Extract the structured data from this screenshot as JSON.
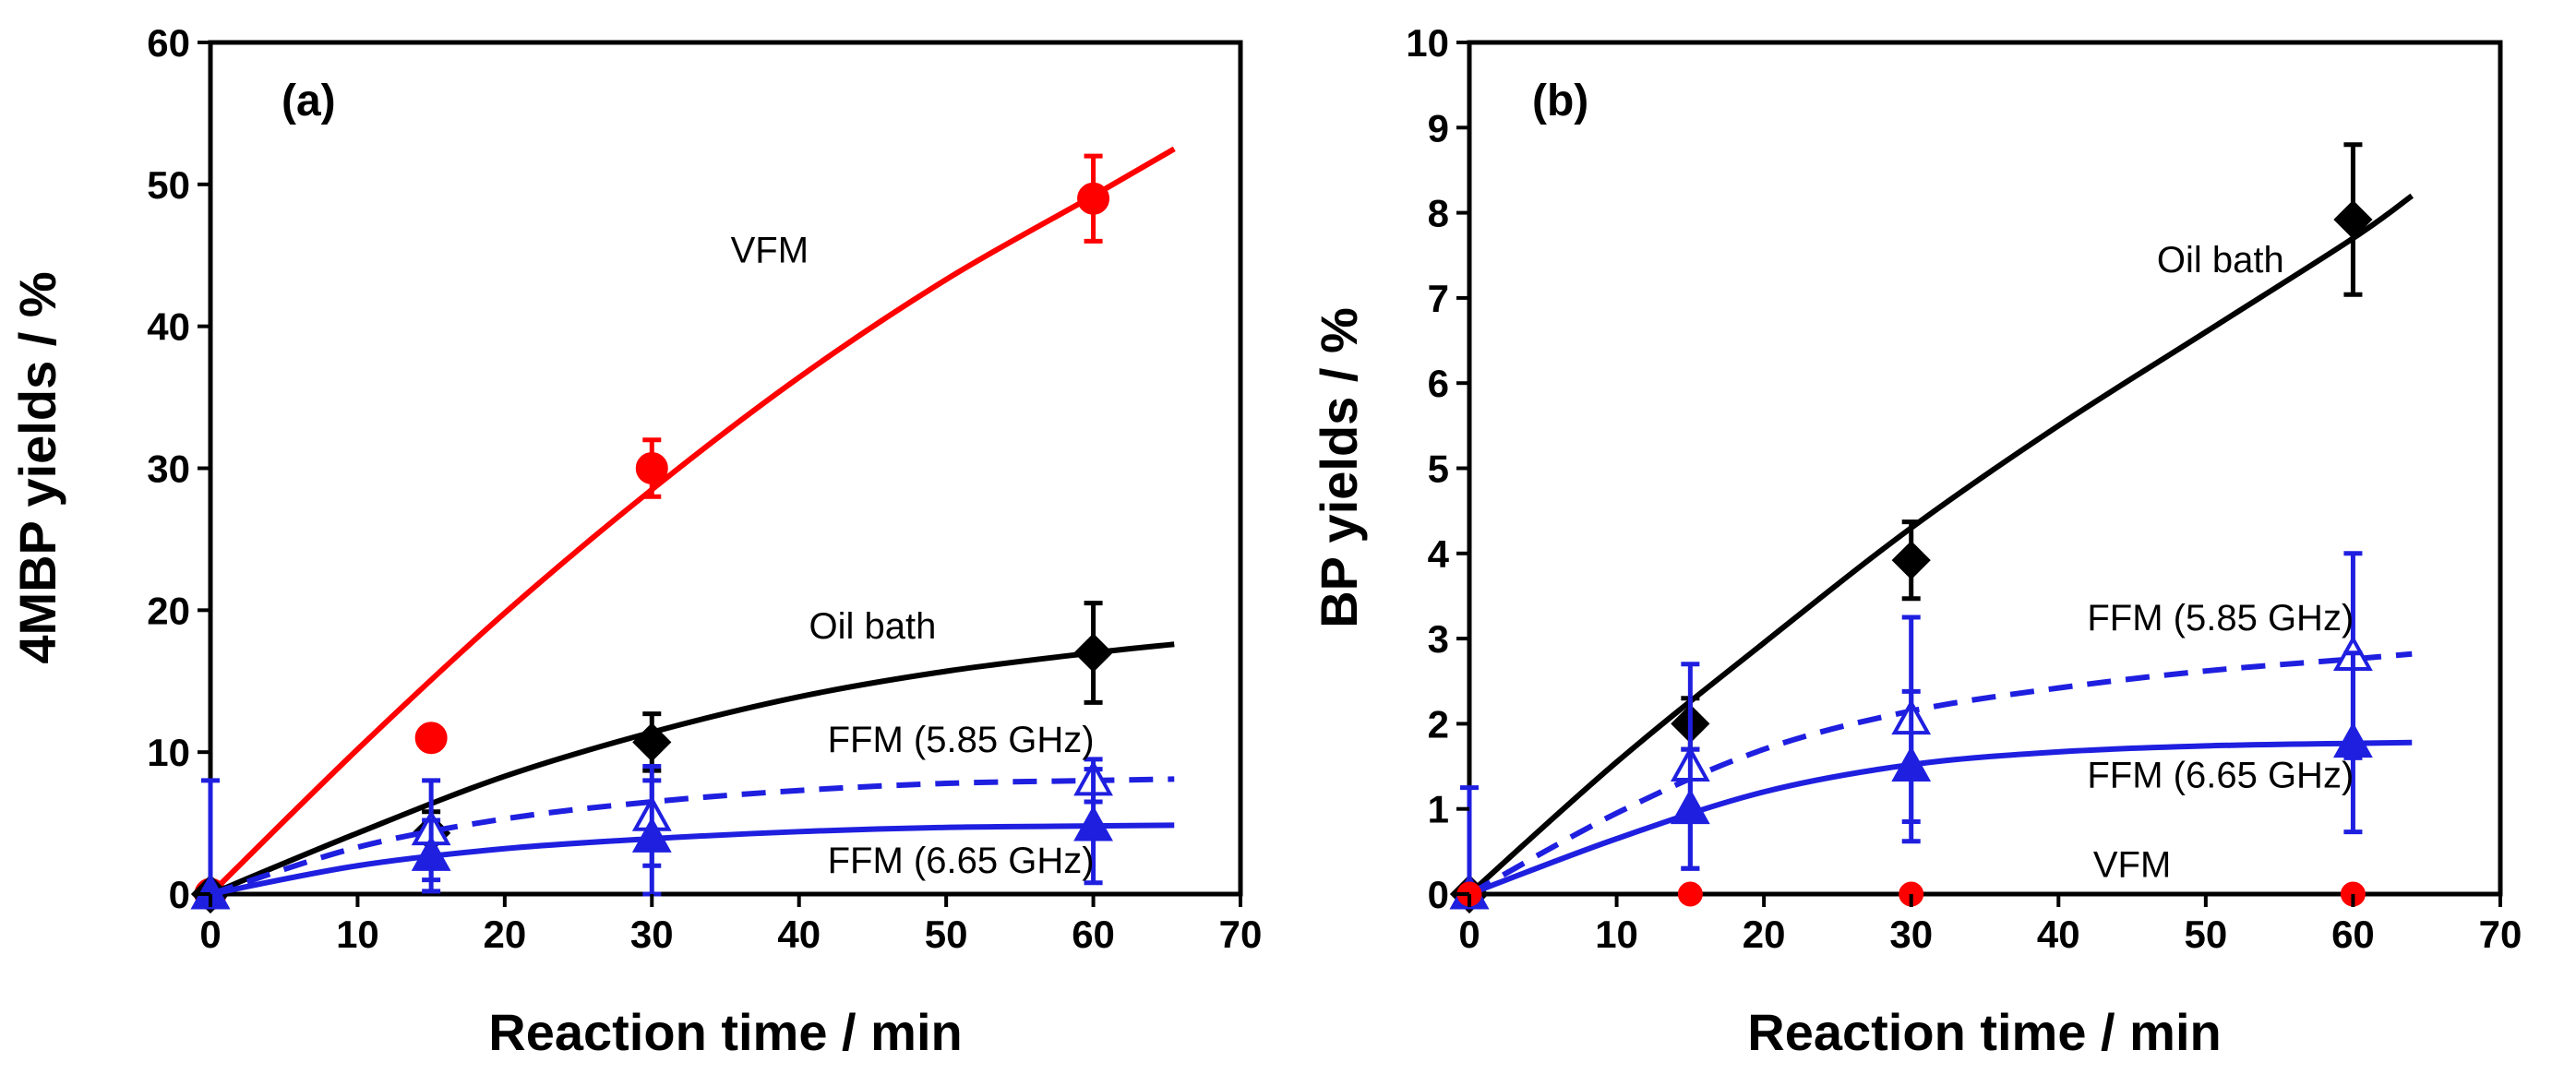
{
  "chart_data": [
    {
      "type": "line",
      "panel_label": "(a)",
      "xlabel": "Reaction time / min",
      "ylabel": "4MBP yields / %",
      "xlim": [
        0,
        70
      ],
      "ylim": [
        0,
        60
      ],
      "xticks": [
        "0",
        "10",
        "20",
        "30",
        "40",
        "50",
        "60",
        "70"
      ],
      "yticks": [
        "0",
        "10",
        "20",
        "30",
        "40",
        "50",
        "60"
      ],
      "grid": false,
      "legend": "none",
      "annotations": [
        {
          "text": "VFM",
          "series": "VFM",
          "x": 38,
          "y": 44.5
        },
        {
          "text": "Oil bath",
          "series": "Oil bath",
          "x": 45,
          "y": 18
        },
        {
          "text": "FFM (5.85 GHz)",
          "series": "FFM (5.85 GHz)",
          "x": 51,
          "y": 10
        },
        {
          "text": "FFM (6.65 GHz)",
          "series": "FFM (6.65 GHz)",
          "x": 51,
          "y": 1.5
        }
      ],
      "series": [
        {
          "name": "VFM",
          "color": "#ff0000",
          "marker": "circle",
          "filled": true,
          "dashed": false,
          "x": [
            0,
            15,
            30,
            60
          ],
          "y": [
            0,
            11,
            30,
            49
          ],
          "err": [
            0,
            0,
            2,
            3
          ],
          "fit_x": [
            0,
            10,
            20,
            30,
            40,
            50,
            60,
            65.5
          ],
          "fit_y": [
            0,
            10.2,
            19.8,
            28.5,
            36.4,
            43.3,
            49.2,
            52.5
          ]
        },
        {
          "name": "Oil bath",
          "color": "#000000",
          "marker": "diamond",
          "filled": true,
          "dashed": false,
          "x": [
            0,
            15,
            30,
            60
          ],
          "y": [
            0,
            4.3,
            10.7,
            17
          ],
          "err": [
            0,
            1.5,
            2.0,
            3.5
          ],
          "fit_x": [
            0,
            10,
            20,
            30,
            40,
            50,
            60,
            65.5
          ],
          "fit_y": [
            0,
            4.3,
            8.3,
            11.4,
            13.9,
            15.7,
            17.0,
            17.6
          ]
        },
        {
          "name": "FFM (5.85 GHz)",
          "color": "#1f1fe0",
          "marker": "triangle",
          "filled": false,
          "dashed": true,
          "x": [
            0,
            15,
            30,
            60
          ],
          "y": [
            0,
            4.5,
            5.5,
            8
          ],
          "err": [
            8,
            3.5,
            3.5,
            1.5
          ],
          "fit_x": [
            0,
            10,
            20,
            30,
            40,
            50,
            60,
            65.5
          ],
          "fit_y": [
            0,
            3.3,
            5.3,
            6.5,
            7.3,
            7.8,
            8.0,
            8.1
          ]
        },
        {
          "name": "FFM (6.65 GHz)",
          "color": "#1f1fe0",
          "marker": "triangle",
          "filled": true,
          "dashed": false,
          "x": [
            0,
            15,
            30,
            60
          ],
          "y": [
            0,
            2.7,
            4,
            4.8
          ],
          "err": [
            0,
            2.5,
            4,
            4
          ],
          "fit_x": [
            0,
            10,
            20,
            30,
            40,
            50,
            60,
            65.5
          ],
          "fit_y": [
            0,
            2.0,
            3.2,
            3.9,
            4.4,
            4.7,
            4.8,
            4.85
          ]
        }
      ]
    },
    {
      "type": "line",
      "panel_label": "(b)",
      "xlabel": "Reaction time / min",
      "ylabel": "BP yields / %",
      "xlim": [
        0,
        70
      ],
      "ylim": [
        0,
        10
      ],
      "xticks": [
        "0",
        "10",
        "20",
        "30",
        "40",
        "50",
        "60",
        "70"
      ],
      "yticks": [
        "0",
        "1",
        "2",
        "3",
        "4",
        "5",
        "6",
        "7",
        "8",
        "9",
        "10"
      ],
      "grid": false,
      "legend": "none",
      "annotations": [
        {
          "text": "Oil bath",
          "series": "Oil bath",
          "x": 51,
          "y": 7.3
        },
        {
          "text": "FFM (5.85 GHz)",
          "series": "FFM (5.85 GHz)",
          "x": 51,
          "y": 3.1
        },
        {
          "text": "FFM (6.65 GHz)",
          "series": "FFM (6.65 GHz)",
          "x": 51,
          "y": 1.25
        },
        {
          "text": "VFM",
          "series": "VFM",
          "x": 45,
          "y": 0.2
        }
      ],
      "series": [
        {
          "name": "Oil bath",
          "color": "#000000",
          "marker": "diamond",
          "filled": true,
          "dashed": false,
          "x": [
            0,
            15,
            30,
            60
          ],
          "y": [
            0,
            2,
            3.92,
            7.92
          ],
          "err": [
            0,
            0.3,
            0.45,
            0.88
          ],
          "fit_x": [
            0,
            10,
            20,
            30,
            40,
            50,
            60,
            64
          ],
          "fit_y": [
            0,
            1.55,
            2.95,
            4.3,
            5.5,
            6.6,
            7.7,
            8.2
          ]
        },
        {
          "name": "FFM (5.85 GHz)",
          "color": "#1f1fe0",
          "marker": "triangle",
          "filled": false,
          "dashed": true,
          "x": [
            0,
            15,
            30,
            60
          ],
          "y": [
            0,
            1.5,
            2.05,
            2.8
          ],
          "err": [
            1.25,
            1.2,
            1.2,
            1.2
          ],
          "fit_x": [
            0,
            10,
            20,
            30,
            40,
            50,
            60,
            64
          ],
          "fit_y": [
            0,
            0.95,
            1.7,
            2.15,
            2.42,
            2.62,
            2.76,
            2.82
          ]
        },
        {
          "name": "FFM (6.65 GHz)",
          "color": "#1f1fe0",
          "marker": "triangle",
          "filled": true,
          "dashed": false,
          "x": [
            0,
            15,
            30,
            60
          ],
          "y": [
            0,
            1,
            1.5,
            1.78
          ],
          "err": [
            0,
            0.7,
            0.88,
            1.05
          ],
          "fit_x": [
            0,
            10,
            20,
            30,
            40,
            50,
            60,
            64
          ],
          "fit_y": [
            0,
            0.65,
            1.2,
            1.52,
            1.67,
            1.74,
            1.77,
            1.78
          ]
        },
        {
          "name": "VFM",
          "color": "#ff0000",
          "marker": "circle",
          "filled": true,
          "dashed": false,
          "x": [
            0,
            15,
            30,
            60
          ],
          "y": [
            0,
            0,
            0,
            0
          ],
          "err": [
            0,
            0,
            0,
            0
          ],
          "fit_x": [],
          "fit_y": []
        }
      ]
    }
  ]
}
